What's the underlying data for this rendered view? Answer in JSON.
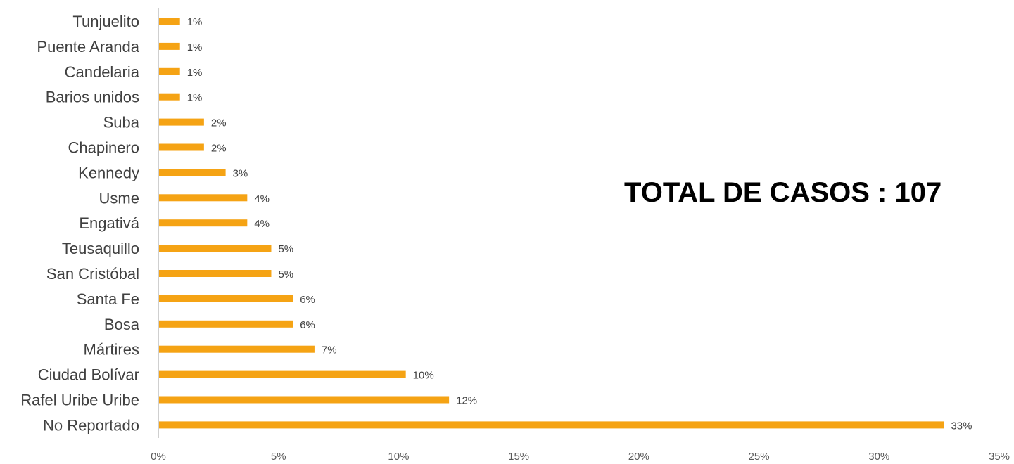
{
  "chart_data": {
    "type": "bar",
    "orientation": "horizontal",
    "categories": [
      "Tunjuelito",
      "Puente Aranda",
      "Candelaria",
      "Barios unidos",
      "Suba",
      "Chapinero",
      "Kennedy",
      "Usme",
      "Engativá",
      "Teusaquillo",
      "San Cristóbal",
      "Santa Fe",
      "Bosa",
      "Mártires",
      "Ciudad Bolívar",
      "Rafel Uribe Uribe",
      "No Reportado"
    ],
    "values": [
      0.9,
      0.9,
      0.9,
      0.9,
      1.9,
      1.9,
      2.8,
      3.7,
      3.7,
      4.7,
      4.7,
      5.6,
      5.6,
      6.5,
      10.3,
      12.1,
      32.7
    ],
    "data_labels": [
      "1%",
      "1%",
      "1%",
      "1%",
      "2%",
      "2%",
      "3%",
      "4%",
      "4%",
      "5%",
      "5%",
      "6%",
      "6%",
      "7%",
      "10%",
      "12%",
      "33%"
    ],
    "xticks": [
      "0%",
      "5%",
      "10%",
      "15%",
      "20%",
      "25%",
      "30%",
      "35%"
    ],
    "xlim": [
      0,
      35
    ],
    "bar_color": "#F5A314",
    "grid": false,
    "legend": "none"
  },
  "annotation": {
    "total_text": "TOTAL DE CASOS : 107"
  }
}
